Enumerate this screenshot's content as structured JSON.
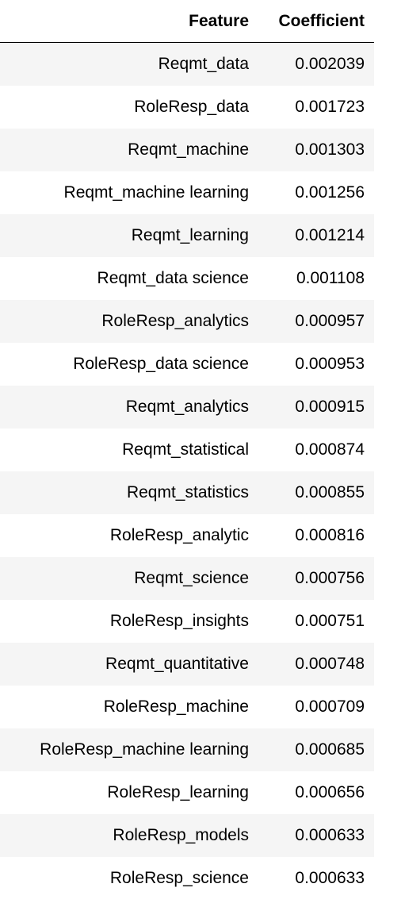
{
  "table": {
    "headers": {
      "feature": "Feature",
      "coefficient": "Coefficient"
    },
    "rows": [
      {
        "feature": "Reqmt_data",
        "coefficient": "0.002039"
      },
      {
        "feature": "RoleResp_data",
        "coefficient": "0.001723"
      },
      {
        "feature": "Reqmt_machine",
        "coefficient": "0.001303"
      },
      {
        "feature": "Reqmt_machine learning",
        "coefficient": "0.001256"
      },
      {
        "feature": "Reqmt_learning",
        "coefficient": "0.001214"
      },
      {
        "feature": "Reqmt_data science",
        "coefficient": "0.001108"
      },
      {
        "feature": "RoleResp_analytics",
        "coefficient": "0.000957"
      },
      {
        "feature": "RoleResp_data science",
        "coefficient": "0.000953"
      },
      {
        "feature": "Reqmt_analytics",
        "coefficient": "0.000915"
      },
      {
        "feature": "Reqmt_statistical",
        "coefficient": "0.000874"
      },
      {
        "feature": "Reqmt_statistics",
        "coefficient": "0.000855"
      },
      {
        "feature": "RoleResp_analytic",
        "coefficient": "0.000816"
      },
      {
        "feature": "Reqmt_science",
        "coefficient": "0.000756"
      },
      {
        "feature": "RoleResp_insights",
        "coefficient": "0.000751"
      },
      {
        "feature": "Reqmt_quantitative",
        "coefficient": "0.000748"
      },
      {
        "feature": "RoleResp_machine",
        "coefficient": "0.000709"
      },
      {
        "feature": "RoleResp_machine learning",
        "coefficient": "0.000685"
      },
      {
        "feature": "RoleResp_learning",
        "coefficient": "0.000656"
      },
      {
        "feature": "RoleResp_models",
        "coefficient": "0.000633"
      },
      {
        "feature": "RoleResp_science",
        "coefficient": "0.000633"
      }
    ]
  }
}
